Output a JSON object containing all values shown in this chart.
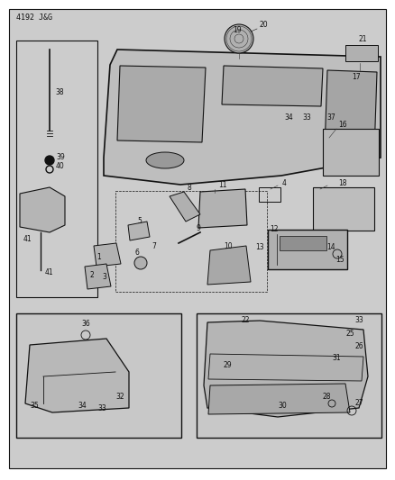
{
  "header_text": "4192 J&G",
  "header_fontsize": 6,
  "outer_bg": "#ffffff",
  "diagram_bg": "#cccccc",
  "line_color": "#111111",
  "text_color": "#111111",
  "part_label_size": 5.5,
  "fig_width": 4.38,
  "fig_height": 5.33,
  "dpi": 100
}
